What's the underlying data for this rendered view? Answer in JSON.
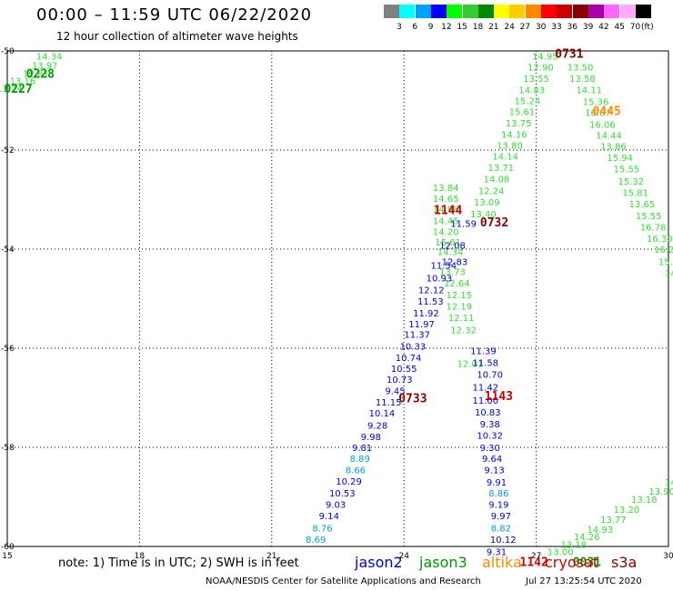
{
  "title": "00:00 – 11:59 UTC 06/22/2020",
  "subtitle": "12 hour collection of altimeter wave heights",
  "legend": {
    "labels": [
      "3",
      "6",
      "9",
      "12",
      "15",
      "18",
      "21",
      "24",
      "27",
      "30",
      "33",
      "36",
      "39",
      "42",
      "45",
      "70"
    ],
    "unit": "(ft)",
    "colors": [
      "#808080",
      "#00ffff",
      "#00a0ff",
      "#0000ff",
      "#00ff00",
      "#33cc33",
      "#008800",
      "#ffff00",
      "#ffcc00",
      "#ff8800",
      "#ff0000",
      "#cc0000",
      "#880000",
      "#aa00aa",
      "#ff66ff",
      "#ffaaff",
      "#000000"
    ]
  },
  "axes": {
    "x_ticks": [
      "15",
      "18",
      "21",
      "24",
      "27",
      "30"
    ],
    "y_ticks": [
      "-50",
      "-52",
      "-54",
      "-56",
      "-58",
      "-60"
    ]
  },
  "colors": {
    "jason2": "#0000cc",
    "jason3": "#009900",
    "altika": "#ff8800",
    "cryosat": "#cc0000",
    "s3a": "#880000",
    "light_green": "#33dd33",
    "dark_blue": "#000099",
    "cyan": "#00a0dd"
  },
  "time_labels": [
    {
      "text": "0228",
      "lon": 15.75,
      "lat": -50.45,
      "c": "jason3"
    },
    {
      "text": "0227",
      "lon": 15.25,
      "lat": -50.75,
      "c": "jason3"
    },
    {
      "text": "0731",
      "lon": 27.75,
      "lat": -50.05,
      "c": "s3a"
    },
    {
      "text": "0445",
      "lon": 28.6,
      "lat": -51.2,
      "c": "altika"
    },
    {
      "text": "1144",
      "lon": 25.0,
      "lat": -53.2,
      "c": "cryosat"
    },
    {
      "text": "0732",
      "lon": 26.05,
      "lat": -53.45,
      "c": "s3a"
    },
    {
      "text": "0733",
      "lon": 24.2,
      "lat": -57.0,
      "c": "s3a"
    },
    {
      "text": "1143",
      "lon": 26.15,
      "lat": -56.95,
      "c": "cryosat"
    },
    {
      "text": "1142",
      "lon": 26.95,
      "lat": -60.3,
      "c": "cryosat"
    },
    {
      "text": "0031",
      "lon": 28.15,
      "lat": -60.3,
      "c": "jason3"
    }
  ],
  "wave_tracks": [
    {
      "c": "light_green",
      "pts": [
        [
          15.95,
          -50.1,
          "14.34"
        ],
        [
          15.85,
          -50.28,
          "13.97"
        ],
        [
          15.65,
          -50.45,
          "12.81"
        ],
        [
          15.35,
          -50.6,
          "13.16"
        ],
        [
          15.05,
          -50.75,
          "13.74"
        ]
      ]
    },
    {
      "c": "light_green",
      "pts": [
        [
          27.2,
          -50.1,
          "14.95"
        ],
        [
          27.1,
          -50.32,
          "12.90"
        ],
        [
          27.0,
          -50.55,
          "13.55"
        ],
        [
          26.9,
          -50.78,
          "14.83"
        ],
        [
          26.8,
          -51.0,
          "15.24"
        ],
        [
          26.68,
          -51.22,
          "15.61"
        ],
        [
          26.6,
          -51.45,
          "13.75"
        ],
        [
          26.5,
          -51.68,
          "14.16"
        ],
        [
          26.4,
          -51.9,
          "13.80"
        ],
        [
          26.3,
          -52.12,
          "14.14"
        ],
        [
          26.2,
          -52.35,
          "13.71"
        ],
        [
          26.1,
          -52.58,
          "14.08"
        ],
        [
          25.98,
          -52.82,
          "12.24"
        ],
        [
          25.88,
          -53.05,
          "13.09"
        ],
        [
          25.8,
          -53.28,
          "13.40"
        ]
      ]
    },
    {
      "c": "light_green",
      "pts": [
        [
          28.0,
          -50.32,
          "13.50"
        ],
        [
          28.05,
          -50.55,
          "13.58"
        ],
        [
          28.2,
          -50.78,
          "14.11"
        ],
        [
          28.35,
          -51.02,
          "15.36"
        ],
        [
          28.4,
          -51.24,
          "16.67"
        ],
        [
          28.5,
          -51.48,
          "16.06"
        ],
        [
          28.65,
          -51.7,
          "14.44"
        ],
        [
          28.75,
          -51.92,
          "13.86"
        ],
        [
          28.9,
          -52.15,
          "15.94"
        ],
        [
          29.05,
          -52.38,
          "15.55"
        ],
        [
          29.15,
          -52.62,
          "15.32"
        ],
        [
          29.25,
          -52.85,
          "15.81"
        ],
        [
          29.4,
          -53.08,
          "13.65"
        ],
        [
          29.55,
          -53.32,
          "15.55"
        ],
        [
          29.65,
          -53.55,
          "16.78"
        ],
        [
          29.8,
          -53.78,
          "16.30"
        ],
        [
          29.9,
          -54.0,
          "16.2"
        ],
        [
          30.0,
          -54.25,
          "15.9"
        ],
        [
          30.05,
          -54.48,
          "14"
        ]
      ]
    },
    {
      "c": "light_green",
      "pts": [
        [
          24.95,
          -52.75,
          "13.84"
        ],
        [
          24.95,
          -52.97,
          "14.65"
        ],
        [
          24.95,
          -53.18,
          "14.98"
        ],
        [
          24.95,
          -53.42,
          "14.45"
        ],
        [
          24.95,
          -53.64,
          "14.20"
        ],
        [
          25.0,
          -53.85,
          "15.61"
        ],
        [
          25.05,
          -54.05,
          "14.34"
        ],
        [
          25.1,
          -54.45,
          "13.73"
        ],
        [
          25.2,
          -54.68,
          "12.64"
        ],
        [
          25.25,
          -54.92,
          "12.15"
        ],
        [
          25.25,
          -55.15,
          "12.19"
        ],
        [
          25.3,
          -55.38,
          "12.11"
        ],
        [
          25.35,
          -55.62,
          "12.32"
        ],
        [
          25.5,
          -56.3,
          "12.01"
        ]
      ]
    },
    {
      "c": "jason2",
      "pts": [
        [
          25.35,
          -53.48,
          "11.59"
        ],
        [
          25.1,
          -53.92,
          "12.08"
        ],
        [
          25.15,
          -54.25,
          "12.83"
        ],
        [
          24.9,
          -54.32,
          "11.54"
        ],
        [
          24.8,
          -54.58,
          "10.93"
        ],
        [
          24.62,
          -54.82,
          "12.12"
        ],
        [
          24.6,
          -55.05,
          "11.53"
        ],
        [
          24.5,
          -55.28,
          "11.92"
        ],
        [
          24.4,
          -55.5,
          "11.97"
        ],
        [
          24.3,
          -55.72,
          "11.37"
        ],
        [
          24.2,
          -55.95,
          "10.33"
        ],
        [
          24.1,
          -56.18,
          "10.74"
        ],
        [
          24.0,
          -56.4,
          "10.55"
        ],
        [
          23.9,
          -56.62,
          "10.73"
        ],
        [
          23.8,
          -56.85,
          "9.45"
        ],
        [
          23.65,
          -57.08,
          "11.15"
        ],
        [
          23.5,
          -57.3,
          "10.14"
        ],
        [
          23.4,
          -57.55,
          "9.28"
        ],
        [
          23.25,
          -57.78,
          "9.98"
        ],
        [
          23.05,
          -58.0,
          "9.81"
        ]
      ]
    },
    {
      "c": "cyan",
      "pts": [
        [
          23.0,
          -58.22,
          "8.89"
        ],
        [
          22.9,
          -58.45,
          "8.66"
        ]
      ]
    },
    {
      "c": "jason2",
      "pts": [
        [
          22.75,
          -58.68,
          "10.29"
        ],
        [
          22.6,
          -58.92,
          "10.53"
        ],
        [
          22.45,
          -59.15,
          "9.03"
        ],
        [
          22.3,
          -59.38,
          "9.14"
        ]
      ]
    },
    {
      "c": "cyan",
      "pts": [
        [
          22.15,
          -59.62,
          "8.76"
        ],
        [
          22.0,
          -59.85,
          "8.69"
        ]
      ]
    },
    {
      "c": "jason2",
      "pts": [
        [
          25.8,
          -56.05,
          "11.39"
        ],
        [
          25.85,
          -56.28,
          "11.58"
        ],
        [
          25.95,
          -56.52,
          "10.70"
        ],
        [
          25.85,
          -56.78,
          "11.42"
        ],
        [
          25.85,
          -57.05,
          "11.00"
        ],
        [
          25.9,
          -57.28,
          "10.83"
        ],
        [
          25.95,
          -57.52,
          "9.38"
        ],
        [
          25.95,
          -57.75,
          "10.32"
        ],
        [
          25.95,
          -58.0,
          "9.30"
        ],
        [
          26.0,
          -58.22,
          "9.64"
        ],
        [
          26.05,
          -58.45,
          "9.13"
        ],
        [
          26.1,
          -58.7,
          "9.91"
        ]
      ]
    },
    {
      "c": "cyan",
      "pts": [
        [
          26.15,
          -58.92,
          "8.86"
        ]
      ]
    },
    {
      "c": "jason2",
      "pts": [
        [
          26.15,
          -59.15,
          "9.19"
        ],
        [
          26.2,
          -59.38,
          "9.97"
        ]
      ]
    },
    {
      "c": "cyan",
      "pts": [
        [
          26.2,
          -59.62,
          "8.82"
        ]
      ]
    },
    {
      "c": "jason2",
      "pts": [
        [
          26.25,
          -59.85,
          "10.12"
        ],
        [
          26.1,
          -60.1,
          "9.31"
        ]
      ]
    },
    {
      "c": "light_green",
      "pts": [
        [
          27.55,
          -60.1,
          "13.00"
        ],
        [
          27.85,
          -59.95,
          "13.18"
        ],
        [
          28.15,
          -59.8,
          "14.26"
        ],
        [
          28.45,
          -59.65,
          "14.93"
        ],
        [
          28.75,
          -59.45,
          "13.77"
        ],
        [
          29.05,
          -59.25,
          "13.20"
        ],
        [
          29.45,
          -59.05,
          "13.18"
        ],
        [
          29.85,
          -58.88,
          "13.90"
        ],
        [
          30.05,
          -58.7,
          "14"
        ]
      ]
    }
  ],
  "note": "note:  1) Time is in UTC;  2) SWH is in feet",
  "satellites": [
    {
      "name": "jason2",
      "c": "jason2"
    },
    {
      "name": "jason3",
      "c": "jason3"
    },
    {
      "name": "altika",
      "c": "altika"
    },
    {
      "name": "cryosat",
      "c": "cryosat"
    },
    {
      "name": "s3a",
      "c": "s3a"
    }
  ],
  "footer": {
    "center": "NOAA/NESDIS Center for Satellite Applications and Research",
    "time": "Jul 27 13:25:54 UTC 2020"
  }
}
